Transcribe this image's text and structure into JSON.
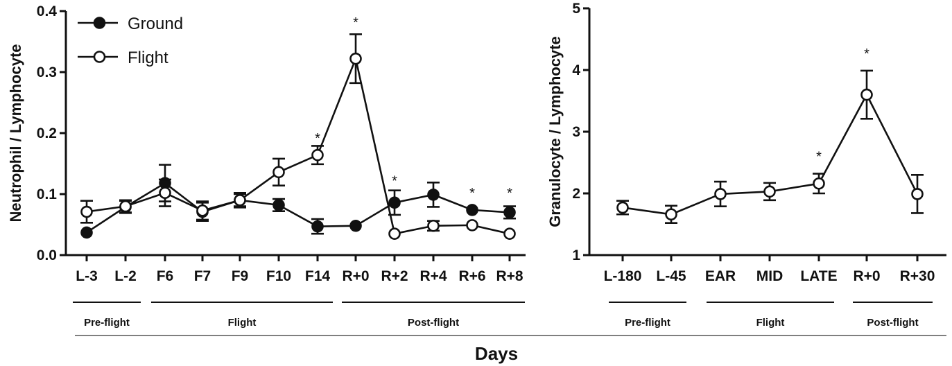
{
  "xlabel": "Days",
  "chart_data": [
    {
      "type": "line",
      "ylabel": "Neutrophil / Lymphocyte",
      "ylim": [
        0,
        0.4
      ],
      "yticks": [
        "0.0",
        "0.1",
        "0.2",
        "0.3",
        "0.4"
      ],
      "categories": [
        "L-3",
        "L-2",
        "F6",
        "F7",
        "F9",
        "F10",
        "F14",
        "R+0",
        "R+2",
        "R+4",
        "R+6",
        "R+8"
      ],
      "legend": {
        "placement": "top-left"
      },
      "series": [
        {
          "name": "Ground",
          "marker": "filled-circle",
          "values": [
            0.037,
            0.079,
            0.118,
            0.071,
            0.09,
            0.082,
            0.047,
            0.048,
            0.086,
            0.099,
            0.074,
            0.07
          ],
          "errors": [
            0,
            0.01,
            0.03,
            0.015,
            0.012,
            0.01,
            0.012,
            0,
            0.02,
            0.02,
            0,
            0.01
          ]
        },
        {
          "name": "Flight",
          "marker": "open-circle",
          "values": [
            0.071,
            0.08,
            0.102,
            0.073,
            0.09,
            0.136,
            0.164,
            0.322,
            0.035,
            0.048,
            0.049,
            0.035
          ],
          "errors": [
            0.018,
            0.01,
            0.022,
            0.015,
            0.01,
            0.022,
            0.015,
            0.04,
            0,
            0.008,
            0,
            0
          ]
        }
      ],
      "annotations": [
        {
          "text": "*",
          "category": "F14",
          "y": 0.2
        },
        {
          "text": "*",
          "category": "R+0",
          "y": 0.39
        },
        {
          "text": "*",
          "category": "R+2",
          "y": 0.13
        },
        {
          "text": "*",
          "category": "R+6",
          "y": 0.11
        },
        {
          "text": "*",
          "category": "R+8",
          "y": 0.11
        }
      ],
      "phases": [
        {
          "label": "Pre-flight",
          "from": "L-3",
          "to": "L-2"
        },
        {
          "label": "Flight",
          "from": "F6",
          "to": "F14"
        },
        {
          "label": "Post-flight",
          "from": "R+0",
          "to": "R+8"
        }
      ]
    },
    {
      "type": "line",
      "ylabel": "Granulocyte / Lymphocyte",
      "ylim": [
        1,
        5
      ],
      "yticks": [
        "1",
        "2",
        "3",
        "4",
        "5"
      ],
      "categories": [
        "L-180",
        "L-45",
        "EAR",
        "MID",
        "LATE",
        "R+0",
        "R+30"
      ],
      "series": [
        {
          "marker": "open-circle",
          "values": [
            1.77,
            1.66,
            1.99,
            2.03,
            2.16,
            3.6,
            1.99
          ],
          "errors": [
            0.11,
            0.14,
            0.2,
            0.14,
            0.16,
            0.39,
            0.31
          ]
        }
      ],
      "annotations": [
        {
          "text": "*",
          "category": "LATE",
          "y": 2.68
        },
        {
          "text": "*",
          "category": "R+0",
          "y": 4.35
        }
      ],
      "phases": [
        {
          "label": "Pre-flight",
          "from": "L-180",
          "to": "L-45"
        },
        {
          "label": "Flight",
          "from": "EAR",
          "to": "LATE"
        },
        {
          "label": "Post-flight",
          "from": "R+0",
          "to": "R+30"
        }
      ]
    }
  ]
}
